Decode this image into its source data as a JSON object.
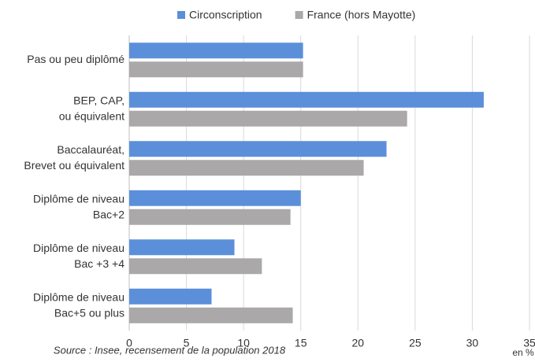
{
  "chart_data": {
    "type": "bar",
    "orientation": "horizontal",
    "categories": [
      [
        "Pas ou peu diplômé"
      ],
      [
        "BEP, CAP,",
        "ou équivalent"
      ],
      [
        "Baccalauréat,",
        "Brevet ou équivalent"
      ],
      [
        "Diplôme de niveau",
        "Bac+2"
      ],
      [
        "Diplôme de niveau",
        "Bac +3 +4"
      ],
      [
        "Diplôme de niveau",
        "Bac+5 ou plus"
      ]
    ],
    "series": [
      {
        "name": "Circonscription",
        "color": "#5b8fd9",
        "values": [
          15.2,
          31,
          22.5,
          15,
          9.2,
          7.2
        ]
      },
      {
        "name": "France (hors Mayotte)",
        "color": "#aaa8a8",
        "values": [
          15.2,
          24.3,
          20.5,
          14.1,
          11.6,
          14.3
        ]
      }
    ],
    "xlim": [
      0,
      35
    ],
    "xticks": [
      0,
      5,
      10,
      15,
      20,
      25,
      30,
      35
    ],
    "grid": true,
    "x_unit": "en %",
    "source": "Source : Insee, recensement de la population 2018"
  }
}
